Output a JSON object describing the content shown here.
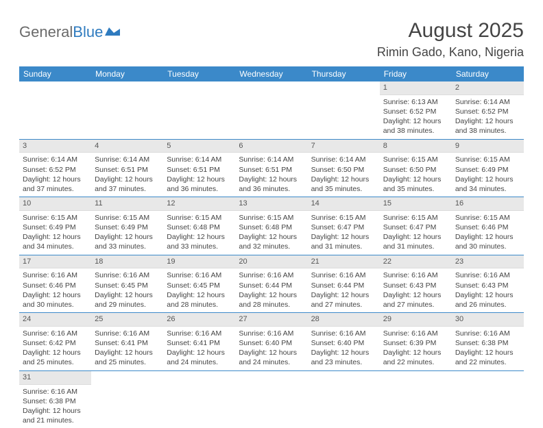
{
  "logo": {
    "text1": "General",
    "text2": "Blue"
  },
  "title": "August 2025",
  "location": "Rimin Gado, Kano, Nigeria",
  "colors": {
    "header_bg": "#3b89c9",
    "header_text": "#ffffff",
    "daynum_bg": "#e8e8e8",
    "row_border": "#3b89c9",
    "text": "#444444"
  },
  "weekdays": [
    "Sunday",
    "Monday",
    "Tuesday",
    "Wednesday",
    "Thursday",
    "Friday",
    "Saturday"
  ],
  "weeks": [
    [
      null,
      null,
      null,
      null,
      null,
      {
        "n": "1",
        "sunrise": "6:13 AM",
        "sunset": "6:52 PM",
        "daylight": "12 hours and 38 minutes."
      },
      {
        "n": "2",
        "sunrise": "6:14 AM",
        "sunset": "6:52 PM",
        "daylight": "12 hours and 38 minutes."
      }
    ],
    [
      {
        "n": "3",
        "sunrise": "6:14 AM",
        "sunset": "6:52 PM",
        "daylight": "12 hours and 37 minutes."
      },
      {
        "n": "4",
        "sunrise": "6:14 AM",
        "sunset": "6:51 PM",
        "daylight": "12 hours and 37 minutes."
      },
      {
        "n": "5",
        "sunrise": "6:14 AM",
        "sunset": "6:51 PM",
        "daylight": "12 hours and 36 minutes."
      },
      {
        "n": "6",
        "sunrise": "6:14 AM",
        "sunset": "6:51 PM",
        "daylight": "12 hours and 36 minutes."
      },
      {
        "n": "7",
        "sunrise": "6:14 AM",
        "sunset": "6:50 PM",
        "daylight": "12 hours and 35 minutes."
      },
      {
        "n": "8",
        "sunrise": "6:15 AM",
        "sunset": "6:50 PM",
        "daylight": "12 hours and 35 minutes."
      },
      {
        "n": "9",
        "sunrise": "6:15 AM",
        "sunset": "6:49 PM",
        "daylight": "12 hours and 34 minutes."
      }
    ],
    [
      {
        "n": "10",
        "sunrise": "6:15 AM",
        "sunset": "6:49 PM",
        "daylight": "12 hours and 34 minutes."
      },
      {
        "n": "11",
        "sunrise": "6:15 AM",
        "sunset": "6:49 PM",
        "daylight": "12 hours and 33 minutes."
      },
      {
        "n": "12",
        "sunrise": "6:15 AM",
        "sunset": "6:48 PM",
        "daylight": "12 hours and 33 minutes."
      },
      {
        "n": "13",
        "sunrise": "6:15 AM",
        "sunset": "6:48 PM",
        "daylight": "12 hours and 32 minutes."
      },
      {
        "n": "14",
        "sunrise": "6:15 AM",
        "sunset": "6:47 PM",
        "daylight": "12 hours and 31 minutes."
      },
      {
        "n": "15",
        "sunrise": "6:15 AM",
        "sunset": "6:47 PM",
        "daylight": "12 hours and 31 minutes."
      },
      {
        "n": "16",
        "sunrise": "6:15 AM",
        "sunset": "6:46 PM",
        "daylight": "12 hours and 30 minutes."
      }
    ],
    [
      {
        "n": "17",
        "sunrise": "6:16 AM",
        "sunset": "6:46 PM",
        "daylight": "12 hours and 30 minutes."
      },
      {
        "n": "18",
        "sunrise": "6:16 AM",
        "sunset": "6:45 PM",
        "daylight": "12 hours and 29 minutes."
      },
      {
        "n": "19",
        "sunrise": "6:16 AM",
        "sunset": "6:45 PM",
        "daylight": "12 hours and 28 minutes."
      },
      {
        "n": "20",
        "sunrise": "6:16 AM",
        "sunset": "6:44 PM",
        "daylight": "12 hours and 28 minutes."
      },
      {
        "n": "21",
        "sunrise": "6:16 AM",
        "sunset": "6:44 PM",
        "daylight": "12 hours and 27 minutes."
      },
      {
        "n": "22",
        "sunrise": "6:16 AM",
        "sunset": "6:43 PM",
        "daylight": "12 hours and 27 minutes."
      },
      {
        "n": "23",
        "sunrise": "6:16 AM",
        "sunset": "6:43 PM",
        "daylight": "12 hours and 26 minutes."
      }
    ],
    [
      {
        "n": "24",
        "sunrise": "6:16 AM",
        "sunset": "6:42 PM",
        "daylight": "12 hours and 25 minutes."
      },
      {
        "n": "25",
        "sunrise": "6:16 AM",
        "sunset": "6:41 PM",
        "daylight": "12 hours and 25 minutes."
      },
      {
        "n": "26",
        "sunrise": "6:16 AM",
        "sunset": "6:41 PM",
        "daylight": "12 hours and 24 minutes."
      },
      {
        "n": "27",
        "sunrise": "6:16 AM",
        "sunset": "6:40 PM",
        "daylight": "12 hours and 24 minutes."
      },
      {
        "n": "28",
        "sunrise": "6:16 AM",
        "sunset": "6:40 PM",
        "daylight": "12 hours and 23 minutes."
      },
      {
        "n": "29",
        "sunrise": "6:16 AM",
        "sunset": "6:39 PM",
        "daylight": "12 hours and 22 minutes."
      },
      {
        "n": "30",
        "sunrise": "6:16 AM",
        "sunset": "6:38 PM",
        "daylight": "12 hours and 22 minutes."
      }
    ],
    [
      {
        "n": "31",
        "sunrise": "6:16 AM",
        "sunset": "6:38 PM",
        "daylight": "12 hours and 21 minutes."
      },
      null,
      null,
      null,
      null,
      null,
      null
    ]
  ],
  "labels": {
    "sunrise": "Sunrise: ",
    "sunset": "Sunset: ",
    "daylight": "Daylight: "
  }
}
